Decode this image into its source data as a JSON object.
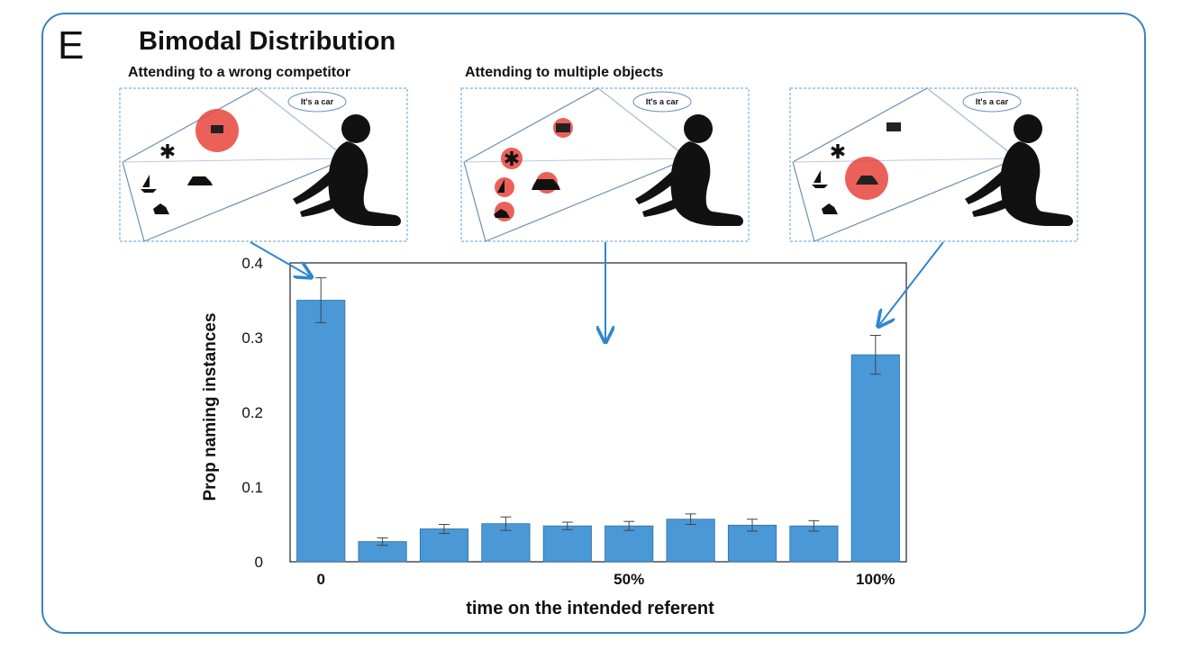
{
  "figure": {
    "panel_label": "E",
    "title": "Bimodal Distribution",
    "scenes": [
      {
        "caption": "Attending to a wrong competitor",
        "speech": "It's a car"
      },
      {
        "caption": "Attending to multiple objects",
        "speech": "It's a car"
      },
      {
        "caption": "",
        "speech": "It's a car"
      }
    ],
    "accent_color": "#3a82c4",
    "highlight_color": "#e8453c"
  },
  "chart_data": {
    "type": "bar",
    "title": "",
    "xlabel": "time on the intended referent",
    "ylabel": "Prop  naming instances",
    "ylim": [
      0,
      0.4
    ],
    "yticks": [
      0,
      0.1,
      0.2,
      0.3,
      0.4
    ],
    "ytick_labels": [
      "0",
      "0.1",
      "0.2",
      "0.3",
      "0.4"
    ],
    "xtick_labels": [
      "0",
      "50%",
      "100%"
    ],
    "xtick_positions": [
      0,
      5,
      9
    ],
    "bar_color": "#4a98d6",
    "values": [
      0.35,
      0.027,
      0.044,
      0.051,
      0.048,
      0.048,
      0.057,
      0.049,
      0.048,
      0.277
    ],
    "errors": [
      0.03,
      0.005,
      0.006,
      0.009,
      0.005,
      0.006,
      0.007,
      0.008,
      0.007,
      0.026
    ]
  }
}
